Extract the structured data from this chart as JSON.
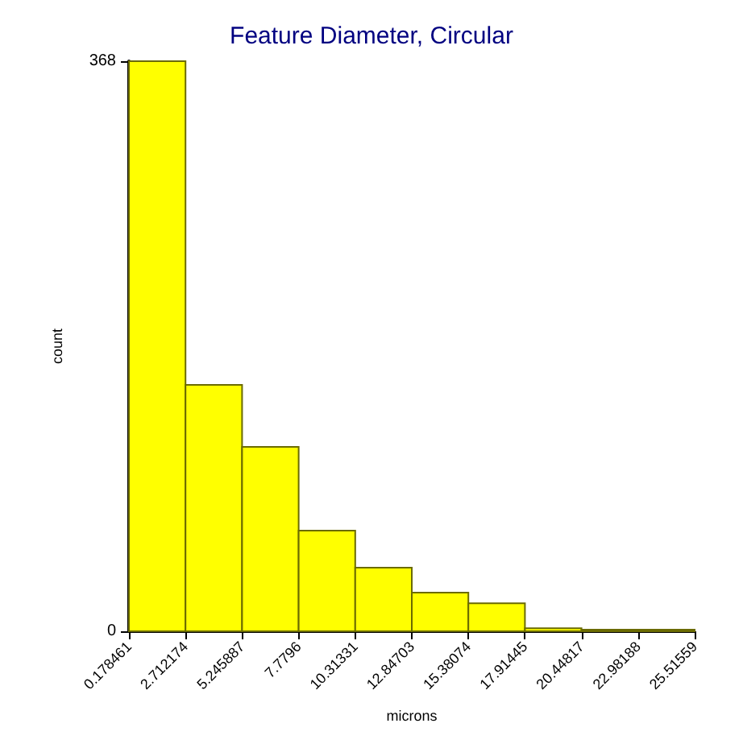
{
  "chart_data": {
    "type": "histogram",
    "title": "Feature Diameter, Circular",
    "xlabel": "microns",
    "ylabel": "count",
    "bins": [
      0.178461,
      2.712174,
      5.245887,
      7.7796,
      10.31331,
      12.84703,
      15.38074,
      17.91445,
      20.44817,
      22.98188,
      25.51559
    ],
    "values": [
      368,
      159,
      119,
      65,
      41,
      25,
      18,
      2,
      1,
      1
    ],
    "color": "#ffff00",
    "xlim": [
      0.178461,
      25.51559
    ],
    "xticks": [
      0.178461,
      2.712174,
      5.245887,
      7.7796,
      10.31331,
      12.84703,
      15.38074,
      17.91445,
      20.44817,
      22.98188,
      25.51559
    ],
    "ylim": [
      0,
      368
    ],
    "yticks": [
      0,
      368
    ],
    "grid": false
  }
}
